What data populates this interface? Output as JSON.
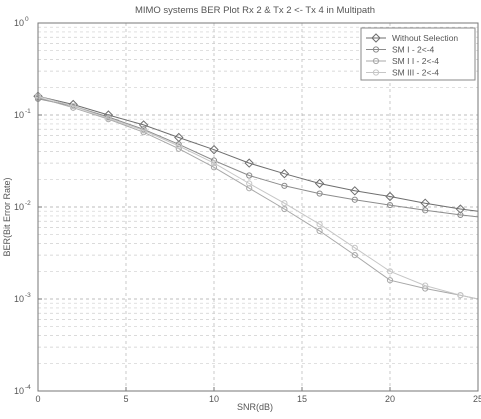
{
  "chart_data": {
    "type": "line",
    "title": "MIMO systems BER Plot Rx 2 & Tx 2 <- Tx 4 in Multipath",
    "xlabel": "SNR(dB)",
    "ylabel": "BER(Bit Error Rate)",
    "xlim": [
      0,
      25
    ],
    "ylim": [
      0.0001,
      1
    ],
    "yscale": "log",
    "grid": true,
    "legend_position": "top-right",
    "x_ticks": [
      "0",
      "5",
      "10",
      "15",
      "20",
      "25"
    ],
    "y_ticks": [
      {
        "value": 1,
        "base": "10",
        "exp": "0"
      },
      {
        "value": 0.1,
        "base": "10",
        "exp": "-1"
      },
      {
        "value": 0.01,
        "base": "10",
        "exp": "-2"
      },
      {
        "value": 0.001,
        "base": "10",
        "exp": "-3"
      },
      {
        "value": 0.0001,
        "base": "10",
        "exp": "-4"
      }
    ],
    "series": [
      {
        "name": "Without Selection",
        "color": "#6e6e6e",
        "marker": "diamond",
        "x": [
          0,
          2,
          4,
          6,
          8,
          10,
          12,
          14,
          16,
          18,
          20,
          22,
          24,
          25
        ],
        "y": [
          0.16,
          0.13,
          0.1,
          0.078,
          0.057,
          0.042,
          0.03,
          0.023,
          0.018,
          0.015,
          0.013,
          0.011,
          0.0095,
          0.009
        ]
      },
      {
        "name": "SM I - 2<-4",
        "color": "#8c8c8c",
        "marker": "circle",
        "x": [
          0,
          2,
          4,
          6,
          8,
          10,
          12,
          14,
          16,
          18,
          20,
          22,
          24,
          25
        ],
        "y": [
          0.15,
          0.125,
          0.095,
          0.07,
          0.048,
          0.032,
          0.022,
          0.017,
          0.014,
          0.012,
          0.0105,
          0.0092,
          0.0082,
          0.0078
        ]
      },
      {
        "name": "SM I I - 2<-4",
        "color": "#a8a8a8",
        "marker": "circle",
        "x": [
          0,
          2,
          4,
          6,
          8,
          10,
          12,
          14,
          16,
          18,
          20,
          22,
          24,
          25
        ],
        "y": [
          0.155,
          0.12,
          0.09,
          0.065,
          0.043,
          0.027,
          0.016,
          0.0095,
          0.0055,
          0.003,
          0.0016,
          0.0013,
          0.0011,
          0.001
        ]
      },
      {
        "name": "SM III - 2<-4",
        "color": "#c6c6c6",
        "marker": "circle",
        "x": [
          0,
          2,
          4,
          6,
          8,
          10,
          12,
          14,
          16,
          18,
          20,
          22,
          24,
          25
        ],
        "y": [
          0.16,
          0.125,
          0.092,
          0.068,
          0.046,
          0.03,
          0.018,
          0.011,
          0.0065,
          0.0036,
          0.002,
          0.0014,
          0.0011,
          0.001
        ]
      }
    ]
  }
}
